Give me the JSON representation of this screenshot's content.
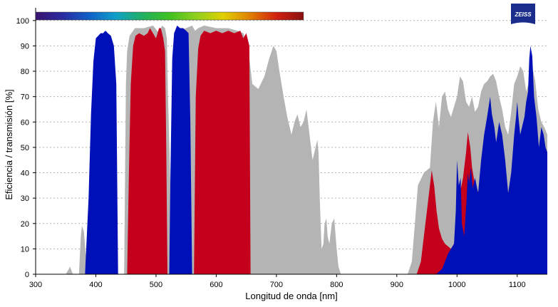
{
  "chart_data": {
    "type": "area",
    "xlabel": "Longitud de onda [nm]",
    "ylabel": "Eficiencia / transmisión [%]",
    "xlim": [
      300,
      1150
    ],
    "ylim": [
      0,
      105
    ],
    "x_ticks": [
      300,
      400,
      500,
      600,
      700,
      800,
      900,
      1000,
      1100
    ],
    "y_ticks": [
      0,
      10,
      20,
      30,
      40,
      50,
      60,
      70,
      80,
      90,
      100
    ],
    "grid": "horizontal-dotted",
    "logo_text": "ZEISS",
    "colors": {
      "gray": "#b4b4b4",
      "blue": "#0010b8",
      "red": "#c4001c",
      "grid": "#b0b0b0",
      "logo": "#1a2c8c"
    },
    "spectrum_bar": {
      "range_nm": [
        300,
        745
      ],
      "stops": [
        "#3a1470",
        "#2a2aa0",
        "#1060c8",
        "#10a0c8",
        "#20b060",
        "#40c020",
        "#90d020",
        "#e0d000",
        "#e08000",
        "#d02010",
        "#8a1010"
      ]
    },
    "series": [
      {
        "color": "gray",
        "points": [
          [
            300,
            0
          ],
          [
            350,
            0
          ],
          [
            355,
            2
          ],
          [
            357,
            3
          ],
          [
            362,
            0
          ],
          [
            372,
            0
          ],
          [
            375,
            15
          ],
          [
            377,
            19
          ],
          [
            380,
            17
          ],
          [
            384,
            6
          ],
          [
            386,
            0
          ],
          [
            447,
            0
          ],
          [
            450,
            75
          ],
          [
            452,
            88
          ],
          [
            456,
            94
          ],
          [
            465,
            97
          ],
          [
            480,
            97
          ],
          [
            495,
            98
          ],
          [
            505,
            95
          ],
          [
            510,
            98
          ],
          [
            515,
            97
          ],
          [
            518,
            93
          ],
          [
            520,
            70
          ],
          [
            525,
            25
          ],
          [
            530,
            60
          ],
          [
            535,
            88
          ],
          [
            540,
            96
          ],
          [
            560,
            98
          ],
          [
            565,
            96
          ],
          [
            570,
            97
          ],
          [
            580,
            98
          ],
          [
            600,
            97
          ],
          [
            620,
            97
          ],
          [
            635,
            96
          ],
          [
            645,
            95
          ],
          [
            650,
            92
          ],
          [
            655,
            85
          ],
          [
            660,
            75
          ],
          [
            670,
            73
          ],
          [
            680,
            78
          ],
          [
            688,
            85
          ],
          [
            695,
            90
          ],
          [
            700,
            88
          ],
          [
            705,
            80
          ],
          [
            712,
            70
          ],
          [
            718,
            62
          ],
          [
            725,
            55
          ],
          [
            730,
            60
          ],
          [
            735,
            63
          ],
          [
            740,
            58
          ],
          [
            745,
            60
          ],
          [
            750,
            65
          ],
          [
            755,
            55
          ],
          [
            760,
            45
          ],
          [
            765,
            50
          ],
          [
            768,
            53
          ],
          [
            770,
            48
          ],
          [
            772,
            30
          ],
          [
            775,
            10
          ],
          [
            778,
            12
          ],
          [
            780,
            20
          ],
          [
            783,
            22
          ],
          [
            785,
            15
          ],
          [
            788,
            12
          ],
          [
            792,
            20
          ],
          [
            796,
            22
          ],
          [
            800,
            10
          ],
          [
            803,
            3
          ],
          [
            807,
            0
          ],
          [
            918,
            0
          ],
          [
            925,
            5
          ],
          [
            930,
            20
          ],
          [
            935,
            35
          ],
          [
            945,
            40
          ],
          [
            955,
            42
          ],
          [
            960,
            60
          ],
          [
            965,
            68
          ],
          [
            970,
            58
          ],
          [
            975,
            70
          ],
          [
            980,
            72
          ],
          [
            985,
            65
          ],
          [
            990,
            62
          ],
          [
            1000,
            70
          ],
          [
            1005,
            78
          ],
          [
            1010,
            76
          ],
          [
            1015,
            68
          ],
          [
            1020,
            66
          ],
          [
            1025,
            70
          ],
          [
            1030,
            64
          ],
          [
            1035,
            66
          ],
          [
            1040,
            72
          ],
          [
            1045,
            75
          ],
          [
            1050,
            76
          ],
          [
            1055,
            78
          ],
          [
            1060,
            79
          ],
          [
            1065,
            76
          ],
          [
            1070,
            70
          ],
          [
            1075,
            65
          ],
          [
            1080,
            58
          ],
          [
            1085,
            55
          ],
          [
            1090,
            64
          ],
          [
            1095,
            75
          ],
          [
            1100,
            78
          ],
          [
            1105,
            82
          ],
          [
            1110,
            80
          ],
          [
            1115,
            72
          ],
          [
            1120,
            76
          ],
          [
            1125,
            82
          ],
          [
            1130,
            76
          ],
          [
            1135,
            65
          ],
          [
            1140,
            60
          ],
          [
            1145,
            58
          ],
          [
            1150,
            55
          ],
          [
            1150,
            0
          ]
        ]
      },
      {
        "color": "blue",
        "points": [
          [
            382,
            0
          ],
          [
            388,
            30
          ],
          [
            392,
            63
          ],
          [
            396,
            84
          ],
          [
            400,
            93
          ],
          [
            404,
            94
          ],
          [
            408,
            95
          ],
          [
            412,
            95
          ],
          [
            416,
            96
          ],
          [
            420,
            95
          ],
          [
            425,
            94
          ],
          [
            430,
            90
          ],
          [
            434,
            75
          ],
          [
            437,
            0
          ]
        ]
      },
      {
        "color": "blue",
        "points": [
          [
            522,
            0
          ],
          [
            524,
            40
          ],
          [
            527,
            85
          ],
          [
            530,
            95
          ],
          [
            535,
            98
          ],
          [
            540,
            97
          ],
          [
            545,
            97
          ],
          [
            550,
            96
          ],
          [
            554,
            95
          ],
          [
            557,
            60
          ],
          [
            560,
            0
          ]
        ]
      },
      {
        "color": "red",
        "points": [
          [
            452,
            0
          ],
          [
            455,
            40
          ],
          [
            458,
            75
          ],
          [
            462,
            90
          ],
          [
            466,
            94
          ],
          [
            472,
            95
          ],
          [
            480,
            94
          ],
          [
            486,
            95
          ],
          [
            490,
            97
          ],
          [
            495,
            95
          ],
          [
            500,
            93
          ],
          [
            505,
            97
          ],
          [
            508,
            97
          ],
          [
            512,
            93
          ],
          [
            515,
            88
          ],
          [
            517,
            50
          ],
          [
            519,
            0
          ]
        ]
      },
      {
        "color": "red",
        "points": [
          [
            563,
            0
          ],
          [
            566,
            70
          ],
          [
            570,
            89
          ],
          [
            574,
            94
          ],
          [
            580,
            96
          ],
          [
            590,
            95
          ],
          [
            600,
            96
          ],
          [
            610,
            95
          ],
          [
            620,
            96
          ],
          [
            630,
            95
          ],
          [
            640,
            96
          ],
          [
            645,
            93
          ],
          [
            650,
            95
          ],
          [
            655,
            90
          ],
          [
            657,
            0
          ]
        ]
      },
      {
        "color": "red",
        "points": [
          [
            933,
            0
          ],
          [
            940,
            5
          ],
          [
            945,
            15
          ],
          [
            950,
            25
          ],
          [
            955,
            35
          ],
          [
            958,
            41
          ],
          [
            962,
            35
          ],
          [
            966,
            25
          ],
          [
            970,
            18
          ],
          [
            975,
            14
          ],
          [
            980,
            12
          ],
          [
            985,
            11
          ],
          [
            990,
            10
          ],
          [
            995,
            12
          ],
          [
            1000,
            22
          ],
          [
            1005,
            32
          ],
          [
            1010,
            38
          ],
          [
            1015,
            48
          ],
          [
            1018,
            56
          ],
          [
            1022,
            50
          ],
          [
            1025,
            42
          ],
          [
            1030,
            35
          ],
          [
            1040,
            30
          ],
          [
            1050,
            30
          ],
          [
            1050,
            0
          ]
        ]
      },
      {
        "color": "blue",
        "points": [
          [
            965,
            0
          ],
          [
            975,
            2
          ],
          [
            980,
            5
          ],
          [
            985,
            8
          ],
          [
            990,
            10
          ],
          [
            995,
            12
          ],
          [
            998,
            25
          ],
          [
            1000,
            45
          ],
          [
            1003,
            35
          ],
          [
            1006,
            38
          ],
          [
            1008,
            20
          ],
          [
            1012,
            15
          ],
          [
            1016,
            30
          ],
          [
            1018,
            40
          ],
          [
            1020,
            36
          ],
          [
            1023,
            42
          ],
          [
            1026,
            34
          ],
          [
            1030,
            38
          ],
          [
            1035,
            32
          ],
          [
            1040,
            45
          ],
          [
            1045,
            55
          ],
          [
            1050,
            62
          ],
          [
            1055,
            70
          ],
          [
            1058,
            63
          ],
          [
            1062,
            58
          ],
          [
            1065,
            52
          ],
          [
            1070,
            60
          ],
          [
            1075,
            55
          ],
          [
            1080,
            45
          ],
          [
            1085,
            32
          ],
          [
            1090,
            40
          ],
          [
            1095,
            55
          ],
          [
            1098,
            62
          ],
          [
            1100,
            68
          ],
          [
            1102,
            62
          ],
          [
            1105,
            55
          ],
          [
            1108,
            58
          ],
          [
            1112,
            62
          ],
          [
            1115,
            68
          ],
          [
            1118,
            72
          ],
          [
            1120,
            85
          ],
          [
            1122,
            90
          ],
          [
            1125,
            86
          ],
          [
            1128,
            70
          ],
          [
            1132,
            62
          ],
          [
            1136,
            50
          ],
          [
            1140,
            58
          ],
          [
            1144,
            55
          ],
          [
            1147,
            50
          ],
          [
            1150,
            48
          ],
          [
            1150,
            0
          ]
        ]
      }
    ]
  }
}
